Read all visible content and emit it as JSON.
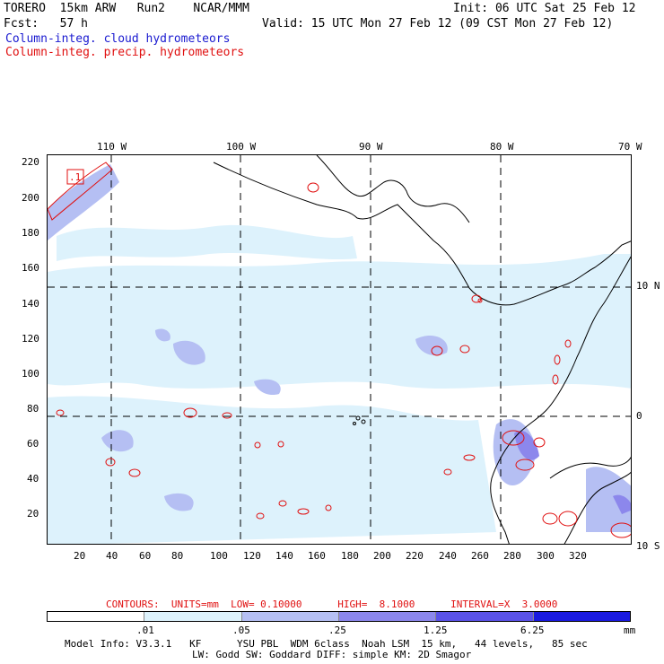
{
  "header": {
    "model": "TORERO  15km ARW   Run2    NCAR/MMM",
    "init": "Init: 06 UTC Sat 25 Feb 12",
    "fcst": "Fcst:   57 h",
    "valid": "Valid: 15 UTC Mon 27 Feb 12 (09 CST Mon 27 Feb 12)",
    "field1": "Column-integ. cloud hydrometeors",
    "field2": "Column-integ. precip. hydrometeors"
  },
  "map": {
    "lon_labels": [
      "110 W",
      "100 W",
      "90 W",
      "80 W",
      "70 W"
    ],
    "lat_labels": [
      "10 N",
      "0",
      "10 S"
    ],
    "y_ticks": [
      "220",
      "200",
      "180",
      "160",
      "140",
      "120",
      "100",
      "80",
      "60",
      "40",
      "20"
    ],
    "x_ticks": [
      "20",
      "40",
      "60",
      "80",
      "100",
      "120",
      "140",
      "160",
      "180",
      "200",
      "220",
      "240",
      "260",
      "280",
      "300",
      "320"
    ],
    "contour_label": ".1"
  },
  "contours_line": "CONTOURS:  UNITS=mm  LOW= 0.10000      HIGH=  8.1000      INTERVAL=X  3.0000",
  "colorbar": {
    "labels": [
      ".01",
      ".05",
      ".25",
      "1.25",
      "6.25"
    ],
    "units": "mm",
    "colors": [
      "#ffffff",
      "#ddf2fc",
      "#b5bff3",
      "#8c87ec",
      "#5a52e8",
      "#1a1ae0"
    ]
  },
  "model_info": {
    "line1": "Model Info: V3.3.1   KF      YSU PBL  WDM 6class  Noah LSM  15 km,   44 levels,   85 sec",
    "line2": "LW: Godd SW: Goddard DIFF: simple KM: 2D Smagor"
  }
}
